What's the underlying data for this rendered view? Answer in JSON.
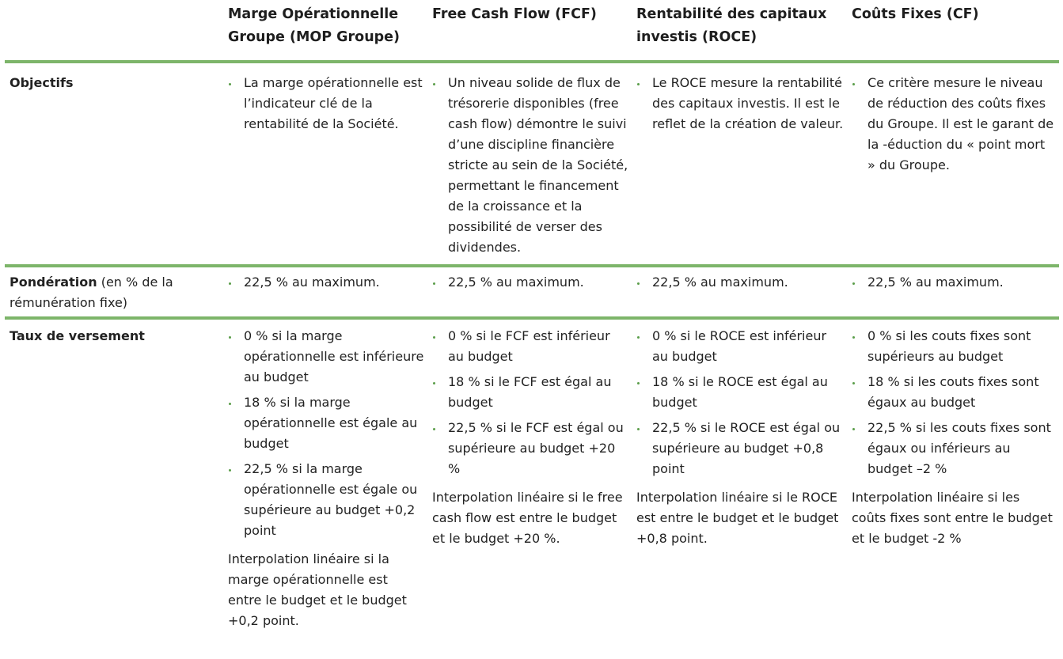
{
  "columns": [
    {
      "title": "Marge Opérationnelle Groupe (MOP Groupe)"
    },
    {
      "title": "Free Cash Flow (FCF)"
    },
    {
      "title": "Rentabilité des capitaux investis (ROCE)"
    },
    {
      "title": "Coûts Fixes (CF)"
    }
  ],
  "rows": {
    "objectifs": {
      "label": "Objectifs",
      "cells": [
        [
          "La marge opérationnelle est l’indicateur clé de la rentabilité de la Société."
        ],
        [
          "Un niveau solide de flux de trésorerie disponibles (free cash flow) démontre le suivi d’une discipline financière stricte au sein de la Société, permettant le financement de la croissance et la possibilité de verser des dividendes."
        ],
        [
          "Le ROCE mesure la rentabilité des capitaux investis. Il est le reflet de la création de valeur."
        ],
        [
          "Ce critère mesure le niveau de réduction des coûts fixes du Groupe. Il est le garant de la -éduction du « point mort » du Groupe."
        ]
      ]
    },
    "ponderation": {
      "label": "Pondération",
      "label_suffix": " (en % de la rémunération fixe)",
      "cells": [
        [
          "22,5 % au maximum."
        ],
        [
          "22,5 % au maximum."
        ],
        [
          "22,5 % au maximum."
        ],
        [
          "22,5 % au maximum."
        ]
      ]
    },
    "taux": {
      "label": "Taux de versement",
      "cells": [
        {
          "bullets": [
            "0 % si la marge opérationnelle est inférieure au budget",
            "18 % si la marge opérationnelle est égale au budget",
            "22,5 % si la marge opérationnelle est égale ou supérieure au budget +0,2 point"
          ],
          "note": "Interpolation linéaire si la marge opérationnelle est entre le budget et le budget +0,2 point."
        },
        {
          "bullets": [
            "0 % si le FCF est inférieur au budget",
            "18 % si le FCF est égal au budget",
            "22,5 % si le FCF est égal ou supérieure au budget +20 %"
          ],
          "note": "Interpolation linéaire si le free cash flow est entre le budget et le budget +20 %."
        },
        {
          "bullets": [
            "0 % si le ROCE est inférieur au budget",
            "18 % si le ROCE est égal au budget",
            "22,5 % si le ROCE est égal ou supérieure au budget +0,8 point"
          ],
          "note": "Interpolation linéaire si le ROCE est entre le budget et le budget +0,8 point."
        },
        {
          "bullets": [
            "0 % si les couts fixes sont supérieurs au budget",
            "18 % si les couts fixes sont égaux au budget",
            "22,5 % si les couts fixes sont égaux ou inférieurs au budget –2 %"
          ],
          "note": "Interpolation linéaire si les coûts fixes sont entre le budget et le budget -2 %"
        }
      ]
    }
  },
  "colors": {
    "rule": "#7db56a",
    "bullet": "#5b9e4a",
    "text": "#222222"
  }
}
